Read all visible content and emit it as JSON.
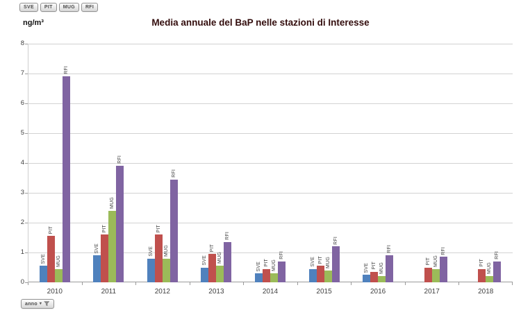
{
  "field_buttons": {
    "items": [
      {
        "label": "SVE"
      },
      {
        "label": "PIT"
      },
      {
        "label": "MUG"
      },
      {
        "label": "RFI"
      }
    ]
  },
  "axis_field_button": {
    "label": "anno"
  },
  "chart_data": {
    "type": "bar",
    "title": "Media annuale del BaP nelle stazioni di Interesse",
    "unit_label": "ng/m³",
    "xlabel": "",
    "ylabel": "ng/m³",
    "ylim": [
      0,
      8
    ],
    "ytick_step": 1,
    "grid": true,
    "legend_position": "none",
    "bar_point_labels": "series name rotated 90deg above each bar",
    "categories": [
      "2010",
      "2011",
      "2012",
      "2013",
      "2014",
      "2015",
      "2016",
      "2017",
      "2018"
    ],
    "series": [
      {
        "name": "SVE",
        "color": "#4F81BD",
        "values": [
          0.55,
          0.9,
          0.8,
          0.5,
          0.3,
          0.45,
          0.25,
          null,
          null
        ]
      },
      {
        "name": "PIT",
        "color": "#C0504D",
        "values": [
          1.55,
          1.6,
          1.6,
          0.95,
          0.45,
          0.55,
          0.35,
          0.5,
          0.45
        ]
      },
      {
        "name": "MUG",
        "color": "#9BBB59",
        "values": [
          0.45,
          2.4,
          0.8,
          0.55,
          0.3,
          0.4,
          0.2,
          0.45,
          0.2
        ]
      },
      {
        "name": "RFI",
        "color": "#8064A2",
        "values": [
          6.9,
          3.9,
          3.45,
          1.35,
          0.7,
          1.2,
          0.9,
          0.85,
          0.7
        ]
      }
    ]
  }
}
